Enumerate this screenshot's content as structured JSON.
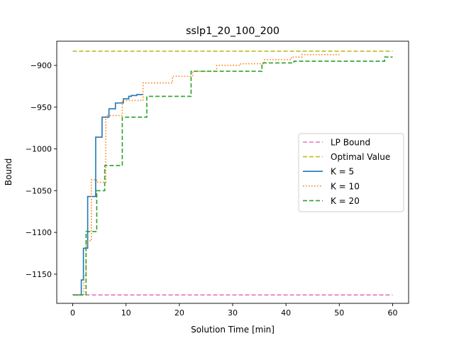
{
  "chart_data": {
    "type": "line",
    "title": "sslp1_20_100_200",
    "xlabel": "Solution Time [min]",
    "ylabel": "Bound",
    "xlim": [
      -3,
      63
    ],
    "ylim": [
      -1185,
      -871
    ],
    "xticks": [
      0,
      10,
      20,
      30,
      40,
      50,
      60
    ],
    "yticks": [
      -1150,
      -1100,
      -1050,
      -1000,
      -950,
      -900
    ],
    "legend_position": "center-right",
    "series": [
      {
        "name": "LP Bound",
        "color": "#e377c2",
        "style": "dashed",
        "step": false,
        "x": [
          0,
          60
        ],
        "y": [
          -1175,
          -1175
        ]
      },
      {
        "name": "Optimal Value",
        "color": "#bcbd22",
        "style": "dashed",
        "step": false,
        "x": [
          0,
          60
        ],
        "y": [
          -883,
          -883
        ]
      },
      {
        "name": "K = 5",
        "color": "#1f77b4",
        "style": "solid",
        "step": true,
        "x": [
          0,
          1.3,
          1.6,
          2.0,
          2.8,
          4.3,
          5.5,
          6.8,
          8.0,
          9.5,
          10.5,
          11.0,
          12.0,
          13.2
        ],
        "y": [
          -1175,
          -1175,
          -1157,
          -1119,
          -1057,
          -986,
          -962,
          -952,
          -945,
          -940,
          -937,
          -936,
          -935,
          -935
        ]
      },
      {
        "name": "K = 10",
        "color": "#ff7f0e",
        "style": "dotted",
        "step": true,
        "x": [
          0,
          1.4,
          2.1,
          2.5,
          3.5,
          4.5,
          6.2,
          9.3,
          13.2,
          18.7,
          22.5,
          27.0,
          31.5,
          36.0,
          41.0,
          43.0,
          50.0
        ],
        "y": [
          -1175,
          -1175,
          -1152,
          -1110,
          -1037,
          -1040,
          -960,
          -942,
          -921,
          -913,
          -907,
          -900,
          -898,
          -893,
          -890,
          -887,
          -887
        ]
      },
      {
        "name": "K = 20",
        "color": "#2ca02c",
        "style": "dashed",
        "step": true,
        "x": [
          0,
          1.5,
          2.5,
          4.5,
          6.0,
          9.3,
          13.9,
          22.2,
          35.5,
          41.5,
          58.5,
          60.0
        ],
        "y": [
          -1175,
          -1175,
          -1099,
          -1050,
          -1020,
          -962,
          -937,
          -907,
          -897,
          -895,
          -890,
          -890
        ]
      }
    ]
  }
}
